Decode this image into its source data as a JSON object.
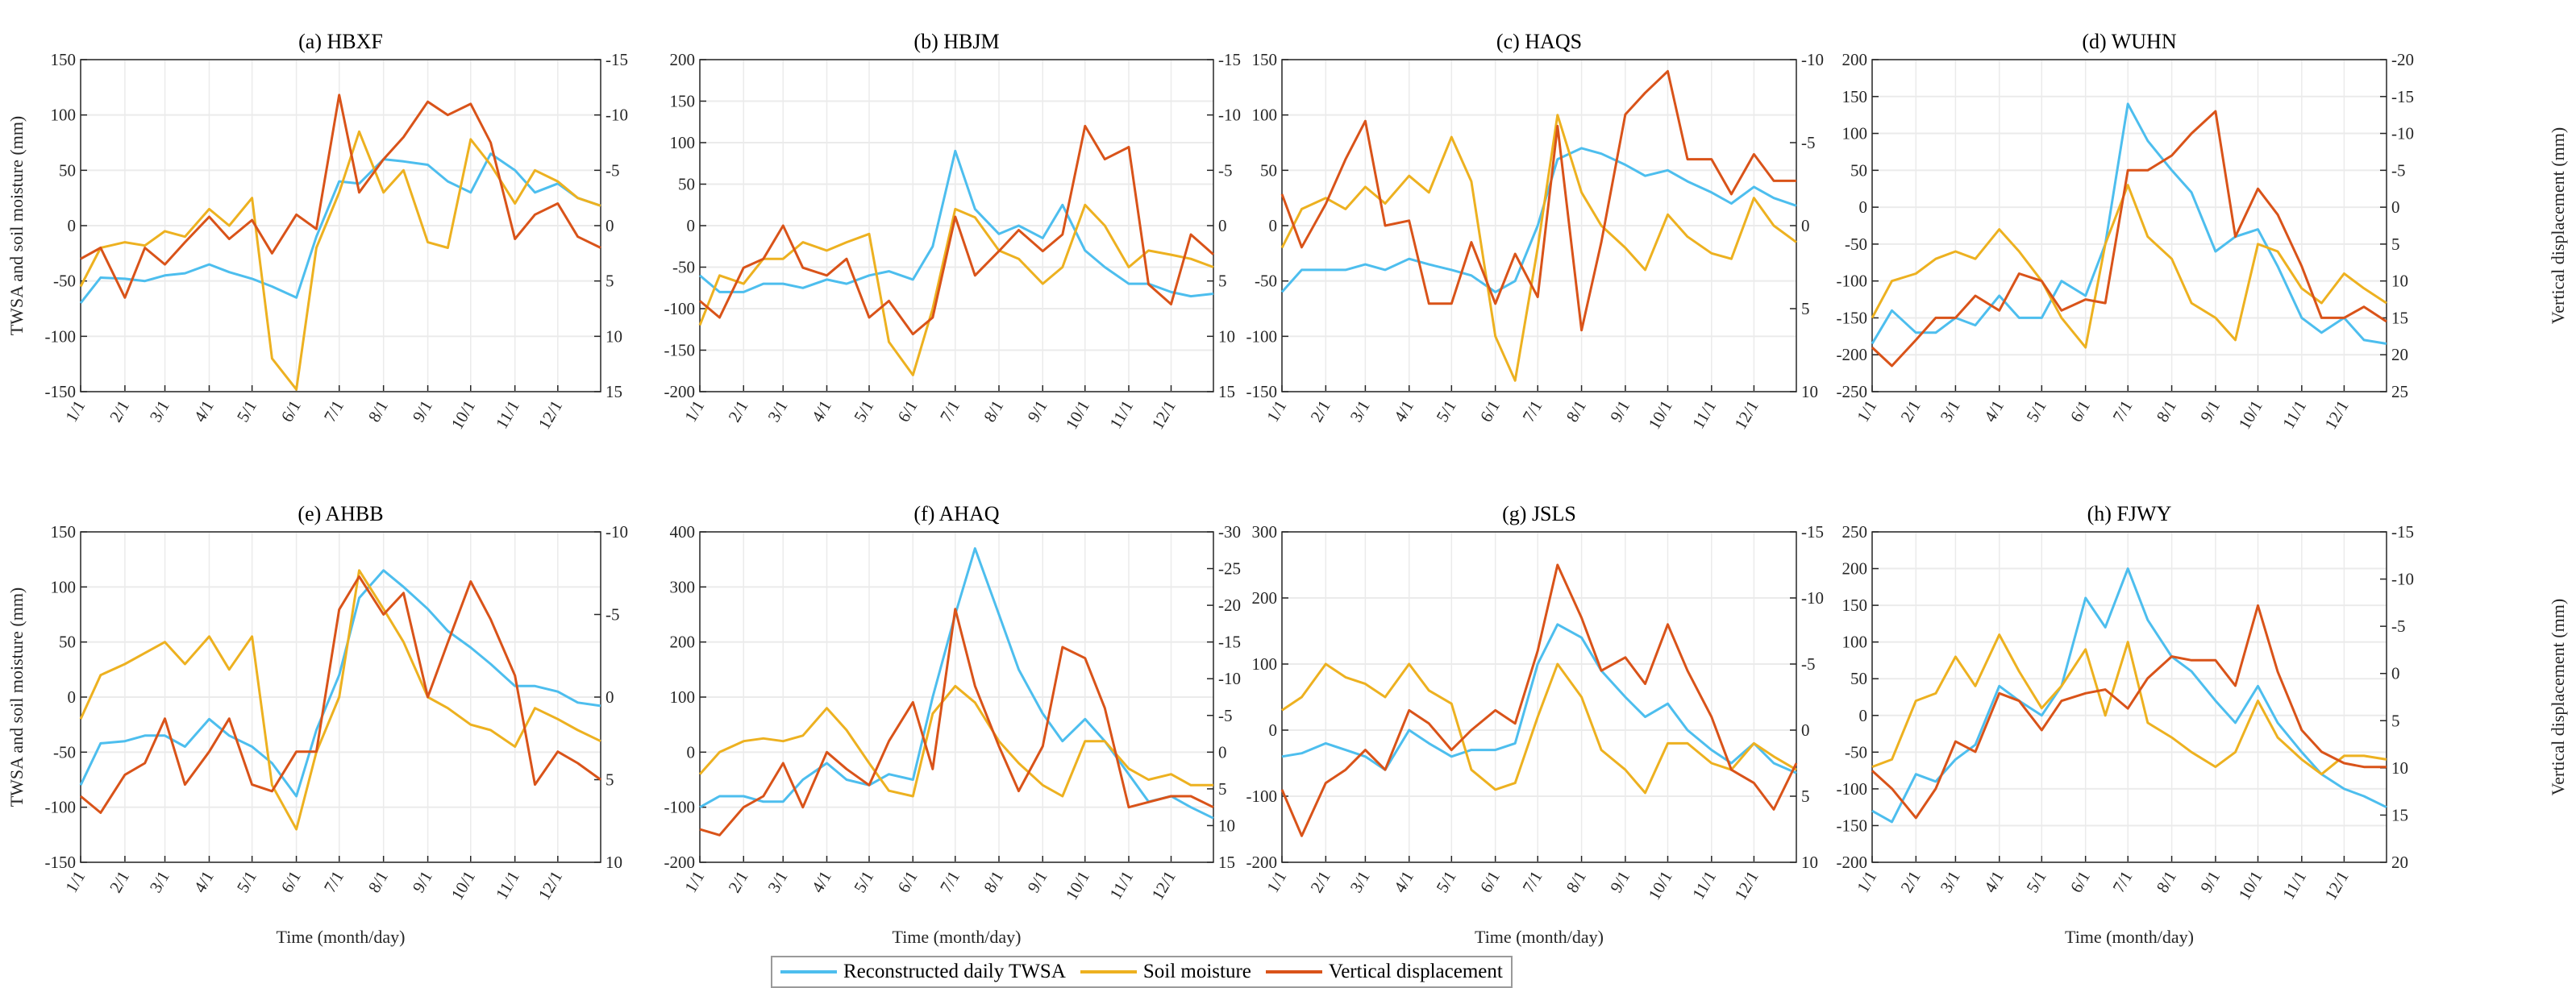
{
  "chart_data": {
    "type": "line",
    "x_days": [
      1,
      15,
      32,
      46,
      60,
      74,
      91,
      105,
      121,
      135,
      152,
      166,
      182,
      196,
      213,
      227,
      244,
      258,
      274,
      288,
      305,
      319,
      335,
      349,
      365
    ],
    "x_ticks": [
      {
        "day": 1,
        "label": "1/1"
      },
      {
        "day": 32,
        "label": "2/1"
      },
      {
        "day": 60,
        "label": "3/1"
      },
      {
        "day": 91,
        "label": "4/1"
      },
      {
        "day": 121,
        "label": "5/1"
      },
      {
        "day": 152,
        "label": "6/1"
      },
      {
        "day": 182,
        "label": "7/1"
      },
      {
        "day": 213,
        "label": "8/1"
      },
      {
        "day": 244,
        "label": "9/1"
      },
      {
        "day": 274,
        "label": "10/1"
      },
      {
        "day": 305,
        "label": "11/1"
      },
      {
        "day": 335,
        "label": "12/1"
      }
    ],
    "xlim": [
      1,
      365
    ],
    "xlabel": "Time (month/day)",
    "ylabel_left": "TWSA and soil moisture (mm)",
    "ylabel_right": "Vertical displacement (mm)",
    "legend": {
      "position": "bottom-center",
      "entries": [
        "Reconstructed daily TWSA",
        "Soil moisture",
        "Vertical displacement"
      ]
    },
    "colors": {
      "twsa": "#4DBEEE",
      "soil": "#EDB120",
      "disp": "#D95319"
    },
    "grid": true,
    "right_axis_reversed": true,
    "panels": [
      {
        "title": "(a) HBXF",
        "ylim_left": [
          -150,
          150
        ],
        "ystep_left": 50,
        "ylim_right": [
          -15,
          15
        ],
        "ystep_right": 5,
        "twsa": [
          -70,
          -47,
          -48,
          -50,
          -45,
          -43,
          -35,
          -42,
          -48,
          -55,
          -65,
          -10,
          40,
          38,
          60,
          58,
          55,
          40,
          30,
          65,
          50,
          30,
          38,
          25,
          18
        ],
        "soil": [
          -55,
          -20,
          -15,
          -18,
          -5,
          -10,
          15,
          0,
          25,
          -120,
          -148,
          -20,
          30,
          85,
          30,
          50,
          -15,
          -20,
          78,
          55,
          20,
          50,
          40,
          25,
          18
        ],
        "disp": [
          3,
          2,
          6.5,
          2,
          3.5,
          1.5,
          -0.8,
          1.2,
          -0.5,
          2.5,
          -1,
          0.3,
          -11.8,
          -3,
          -6,
          -8,
          -11.2,
          -10,
          -11,
          -7.5,
          1.2,
          -1,
          -2,
          1,
          2
        ]
      },
      {
        "title": "(b) HBJM",
        "ylim_left": [
          -200,
          200
        ],
        "ystep_left": 50,
        "ylim_right": [
          -15,
          15
        ],
        "ystep_right": 5,
        "twsa": [
          -60,
          -80,
          -80,
          -70,
          -70,
          -75,
          -65,
          -70,
          -60,
          -55,
          -65,
          -25,
          90,
          20,
          -10,
          0,
          -15,
          25,
          -30,
          -50,
          -70,
          -70,
          -80,
          -85,
          -82
        ],
        "soil": [
          -120,
          -60,
          -70,
          -40,
          -40,
          -20,
          -30,
          -20,
          -10,
          -140,
          -180,
          -100,
          20,
          10,
          -30,
          -40,
          -70,
          -50,
          25,
          0,
          -50,
          -30,
          -35,
          -40,
          -50
        ],
        "disp": [
          6.8,
          8.3,
          3.8,
          3,
          0,
          3.8,
          4.5,
          3,
          8.3,
          6.8,
          9.8,
          8.3,
          -0.8,
          4.5,
          2.3,
          0.4,
          2.3,
          0.8,
          -9,
          -6,
          -7.1,
          5.3,
          7.1,
          0.8,
          2.6
        ]
      },
      {
        "title": "(c) HAQS",
        "ylim_left": [
          -150,
          150
        ],
        "ystep_left": 50,
        "ylim_right": [
          -10,
          10
        ],
        "ystep_right": 5,
        "twsa": [
          -60,
          -40,
          -40,
          -40,
          -35,
          -40,
          -30,
          -35,
          -40,
          -45,
          -60,
          -50,
          0,
          60,
          70,
          65,
          55,
          45,
          50,
          40,
          30,
          20,
          35,
          25,
          18
        ],
        "soil": [
          -20,
          15,
          25,
          15,
          35,
          20,
          45,
          30,
          80,
          40,
          -100,
          -140,
          -20,
          100,
          30,
          0,
          -20,
          -40,
          10,
          -10,
          -25,
          -30,
          25,
          0,
          -15
        ],
        "disp": [
          -1.9,
          1.3,
          -1.3,
          -4,
          -6.3,
          0,
          -0.3,
          4.7,
          4.7,
          1,
          4.7,
          1.7,
          4.3,
          -6,
          6.3,
          1,
          -6.7,
          -8,
          -9.3,
          -4,
          -4,
          -1.9,
          -4.3,
          -2.7,
          -2.7
        ]
      },
      {
        "title": "(d) WUHN",
        "ylim_left": [
          -250,
          200
        ],
        "ystep_left": 50,
        "ylim_right": [
          -20,
          25
        ],
        "ystep_right": 5,
        "twsa": [
          -185,
          -140,
          -170,
          -170,
          -150,
          -160,
          -120,
          -150,
          -150,
          -100,
          -120,
          -50,
          140,
          90,
          50,
          20,
          -60,
          -40,
          -30,
          -80,
          -150,
          -170,
          -150,
          -180,
          -185
        ],
        "soil": [
          -150,
          -100,
          -90,
          -70,
          -60,
          -70,
          -30,
          -60,
          -100,
          -150,
          -190,
          -50,
          30,
          -40,
          -70,
          -130,
          -150,
          -180,
          -50,
          -60,
          -110,
          -130,
          -90,
          -110,
          -130
        ],
        "disp": [
          19,
          21.5,
          18,
          15,
          15,
          12,
          14,
          9,
          10,
          14,
          12.5,
          13,
          -5,
          -5,
          -7,
          -10,
          -13,
          4,
          -2.5,
          1,
          8,
          15,
          15,
          13.5,
          15.5
        ]
      },
      {
        "title": "(e) AHBB",
        "ylim_left": [
          -150,
          150
        ],
        "ystep_left": 50,
        "ylim_right": [
          -10,
          10
        ],
        "ystep_right": 5,
        "twsa": [
          -80,
          -42,
          -40,
          -35,
          -35,
          -45,
          -20,
          -35,
          -45,
          -60,
          -90,
          -30,
          20,
          90,
          115,
          100,
          80,
          60,
          45,
          30,
          10,
          10,
          5,
          -5,
          -8
        ],
        "soil": [
          -20,
          20,
          30,
          40,
          50,
          30,
          55,
          25,
          55,
          -80,
          -120,
          -50,
          0,
          115,
          80,
          50,
          0,
          -10,
          -25,
          -30,
          -45,
          -10,
          -20,
          -30,
          -40
        ],
        "disp": [
          6,
          7,
          4.7,
          4,
          1.3,
          5.3,
          3.3,
          1.3,
          5.3,
          5.7,
          3.3,
          3.3,
          -5.3,
          -7.3,
          -5,
          -6.3,
          0,
          -3.3,
          -7,
          -4.7,
          -1.3,
          5.3,
          3.3,
          4,
          5
        ]
      },
      {
        "title": "(f) AHAQ",
        "ylim_left": [
          -200,
          400
        ],
        "ystep_left": 100,
        "ylim_right": [
          -30,
          15
        ],
        "ystep_right": 5,
        "twsa": [
          -100,
          -80,
          -80,
          -90,
          -90,
          -50,
          -20,
          -50,
          -60,
          -40,
          -50,
          100,
          250,
          370,
          250,
          150,
          70,
          20,
          60,
          20,
          -40,
          -90,
          -80,
          -100,
          -120
        ],
        "soil": [
          -40,
          0,
          20,
          25,
          20,
          30,
          80,
          40,
          -20,
          -70,
          -80,
          70,
          120,
          90,
          20,
          -20,
          -60,
          -80,
          20,
          20,
          -30,
          -50,
          -40,
          -60,
          -60
        ],
        "disp": [
          10.5,
          11.3,
          7.5,
          6,
          1.5,
          7.5,
          0,
          2.3,
          4.5,
          -1.5,
          -6.8,
          2.3,
          -19.5,
          -9,
          -0.8,
          5.3,
          -0.8,
          -14.3,
          -12.8,
          -6,
          7.5,
          6.8,
          6,
          6,
          7.5
        ]
      },
      {
        "title": "(g) JSLS",
        "ylim_left": [
          -200,
          300
        ],
        "ystep_left": 100,
        "ylim_right": [
          -15,
          10
        ],
        "ystep_right": 5,
        "twsa": [
          -40,
          -35,
          -20,
          -30,
          -40,
          -60,
          0,
          -20,
          -40,
          -30,
          -30,
          -20,
          100,
          160,
          140,
          90,
          50,
          20,
          40,
          0,
          -30,
          -50,
          -20,
          -50,
          -65
        ],
        "soil": [
          30,
          50,
          100,
          80,
          70,
          50,
          100,
          60,
          40,
          -60,
          -90,
          -80,
          20,
          100,
          50,
          -30,
          -60,
          -95,
          -20,
          -20,
          -50,
          -60,
          -20,
          -40,
          -60
        ],
        "disp": [
          4.5,
          8,
          4,
          3,
          1.5,
          3,
          -1.5,
          -0.5,
          1.5,
          0,
          -1.5,
          -0.5,
          -6,
          -12.5,
          -8.5,
          -4.5,
          -5.5,
          -3.5,
          -8,
          -4.5,
          -1,
          3,
          4,
          6,
          2.5
        ]
      },
      {
        "title": "(h) FJWY",
        "ylim_left": [
          -200,
          250
        ],
        "ystep_left": 50,
        "ylim_right": [
          -15,
          20
        ],
        "ystep_right": 5,
        "twsa": [
          -130,
          -145,
          -80,
          -90,
          -60,
          -40,
          40,
          20,
          0,
          40,
          160,
          120,
          200,
          130,
          80,
          60,
          20,
          -10,
          40,
          -10,
          -50,
          -80,
          -100,
          -110,
          -125
        ],
        "soil": [
          -70,
          -60,
          20,
          30,
          80,
          40,
          110,
          60,
          10,
          40,
          90,
          0,
          100,
          -10,
          -30,
          -50,
          -70,
          -50,
          20,
          -30,
          -60,
          -80,
          -55,
          -55,
          -60
        ],
        "disp": [
          10.3,
          12.2,
          15.3,
          12.2,
          7.2,
          8.3,
          2.1,
          2.9,
          6,
          2.9,
          2.1,
          1.7,
          3.7,
          0.5,
          -1.8,
          -1.4,
          -1.4,
          1.3,
          -7.2,
          -0.2,
          6,
          8.3,
          9.5,
          9.9,
          9.9
        ]
      }
    ]
  }
}
